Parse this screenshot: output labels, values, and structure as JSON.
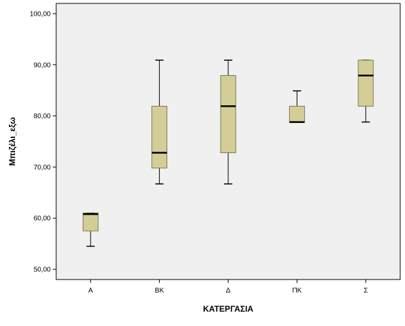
{
  "chart_data": {
    "type": "boxplot",
    "title": "",
    "xlabel": "ΚΑΤΕΡΓΑΣΙΑ",
    "ylabel": "Μπιζέλι_εξω",
    "ylim": [
      48,
      102
    ],
    "yticks": [
      "50,00",
      "60,00",
      "70,00",
      "80,00",
      "90,00",
      "100,00"
    ],
    "ytick_values": [
      50,
      60,
      70,
      80,
      90,
      100
    ],
    "grid": false,
    "categories": [
      "A",
      "BK",
      "Δ",
      "ΠΚ",
      "Σ"
    ],
    "boxes": [
      {
        "category": "A",
        "min": 54.5,
        "q1": 57.5,
        "median": 60.8,
        "q3": 61.0,
        "max": 61.0
      },
      {
        "category": "BK",
        "min": 66.7,
        "q1": 69.8,
        "median": 72.8,
        "q3": 81.9,
        "max": 90.9
      },
      {
        "category": "Δ",
        "min": 66.7,
        "q1": 72.8,
        "median": 81.9,
        "q3": 87.9,
        "max": 90.9
      },
      {
        "category": "ΠΚ",
        "min": 78.8,
        "q1": 78.8,
        "median": 78.8,
        "q3": 81.9,
        "max": 84.9
      },
      {
        "category": "Σ",
        "min": 78.8,
        "q1": 81.9,
        "median": 87.9,
        "q3": 90.9,
        "max": 90.9
      }
    ],
    "colors": {
      "plot_background": "#f0f0f0",
      "box_fill": "#d3ce97",
      "box_stroke": "#7a7a50",
      "median": "#000000",
      "whisker": "#000000",
      "axis": "#000000"
    }
  }
}
